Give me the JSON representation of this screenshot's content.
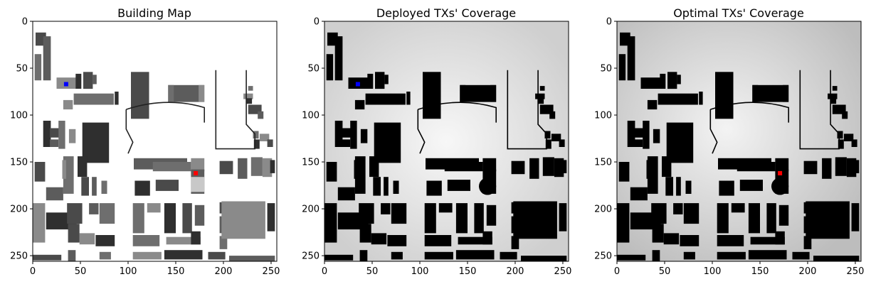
{
  "chart_data": [
    {
      "type": "heatmap",
      "title": "Building Map",
      "xlabel": "",
      "ylabel": "",
      "xlim": [
        0,
        256
      ],
      "ylim": [
        256,
        0
      ],
      "xticks": [
        0,
        50,
        100,
        150,
        200,
        250
      ],
      "yticks": [
        0,
        50,
        100,
        150,
        200,
        250
      ],
      "markers": [
        {
          "x": 35,
          "y": 67,
          "color": "#0000ff"
        },
        {
          "x": 171,
          "y": 162,
          "color": "#ff0000"
        }
      ],
      "background": "#ffffff",
      "building_shades": [
        "#4a4a4a",
        "#5c5c5c",
        "#6e6e6e",
        "#8a8a8a",
        "#2f2f2f"
      ]
    },
    {
      "type": "heatmap",
      "title": "Deployed TXs' Coverage",
      "xlabel": "",
      "ylabel": "",
      "xlim": [
        0,
        256
      ],
      "ylim": [
        256,
        0
      ],
      "xticks": [
        0,
        50,
        100,
        150,
        200,
        250
      ],
      "yticks": [
        0,
        50,
        100,
        150,
        200,
        250
      ],
      "markers": [
        {
          "x": 35,
          "y": 67,
          "color": "#0000ff"
        }
      ],
      "background": "#e9e9e9",
      "building_shades": [
        "#000000"
      ]
    },
    {
      "type": "heatmap",
      "title": "Optimal TXs' Coverage",
      "xlabel": "",
      "ylabel": "",
      "xlim": [
        0,
        256
      ],
      "ylim": [
        256,
        0
      ],
      "xticks": [
        0,
        50,
        100,
        150,
        200,
        250
      ],
      "yticks": [
        0,
        50,
        100,
        150,
        200,
        250
      ],
      "markers": [
        {
          "x": 171,
          "y": 162,
          "color": "#ff0000"
        }
      ],
      "background": "#e4e4e4",
      "building_shades": [
        "#000000"
      ]
    }
  ]
}
